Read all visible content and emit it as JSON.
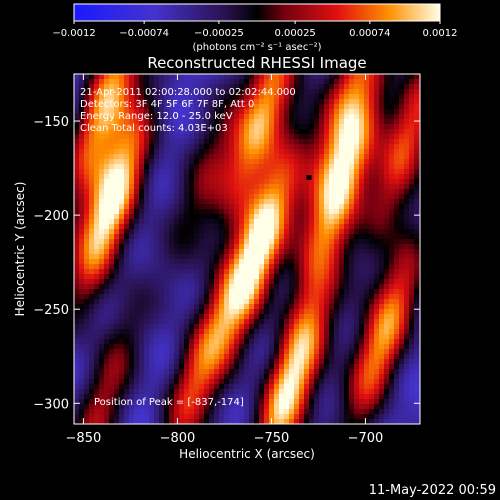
{
  "chart_data": {
    "type": "heatmap",
    "title": "Reconstructed RHESSI Image",
    "xlabel": "Heliocentric X (arcsec)",
    "ylabel": "Heliocentric Y (arcsec)",
    "xlim": [
      -855,
      -671
    ],
    "ylim": [
      -311,
      -125
    ],
    "x_ticks": [
      -850,
      -800,
      -750,
      -700
    ],
    "y_ticks": [
      -300,
      -250,
      -200,
      -150
    ],
    "x_tick_labels": [
      "−850",
      "−800",
      "−750",
      "−700"
    ],
    "y_tick_labels": [
      "−300",
      "−250",
      "−200",
      "−150"
    ],
    "colorbar": {
      "range": [
        -0.0012,
        0.0012
      ],
      "ticks": [
        -0.0012,
        -0.00074,
        -0.00025,
        0.00025,
        0.00074,
        0.0012
      ],
      "tick_labels": [
        "−0.0012",
        "−0.00074",
        "−0.00025",
        "0.00025",
        "0.00074",
        "0.0012"
      ],
      "units": "(photons cm⁻² s⁻¹ asec⁻²)"
    },
    "annotations": [
      "21-Apr-2011 02:00:28.000 to 02:02:44.000",
      "Detectors: 3F 4F 5F 6F 7F 8F, Att 0",
      "Energy Range: 12.0 - 25.0 keV",
      "Clean     Total counts: 4.03E+03"
    ],
    "peak_label": "Position of Peak = [-837,-174]",
    "peak": [
      -837,
      -174
    ],
    "marker": [
      -730,
      -180
    ],
    "bands": [
      {
        "center": [
          -835,
          -195
        ],
        "amp": 1.0
      },
      {
        "center": [
          -838,
          -140
        ],
        "amp": 0.75
      },
      {
        "center": [
          -840,
          -300
        ],
        "amp": 0.45
      },
      {
        "center": [
          -790,
          -285
        ],
        "amp": 0.6
      },
      {
        "center": [
          -785,
          -180
        ],
        "amp": 0.35
      },
      {
        "center": [
          -757,
          -218
        ],
        "amp": 0.95
      },
      {
        "center": [
          -755,
          -148
        ],
        "amp": 0.8
      },
      {
        "center": [
          -740,
          -290
        ],
        "amp": 0.95
      },
      {
        "center": [
          -713,
          -185
        ],
        "amp": 0.85
      },
      {
        "center": [
          -690,
          -265
        ],
        "amp": 0.8
      },
      {
        "center": [
          -678,
          -160
        ],
        "amp": 0.6
      },
      {
        "center": [
          -708,
          -135
        ],
        "amp": 0.55
      }
    ],
    "grid": false
  },
  "timestamp": "11-May-2022 00:59"
}
